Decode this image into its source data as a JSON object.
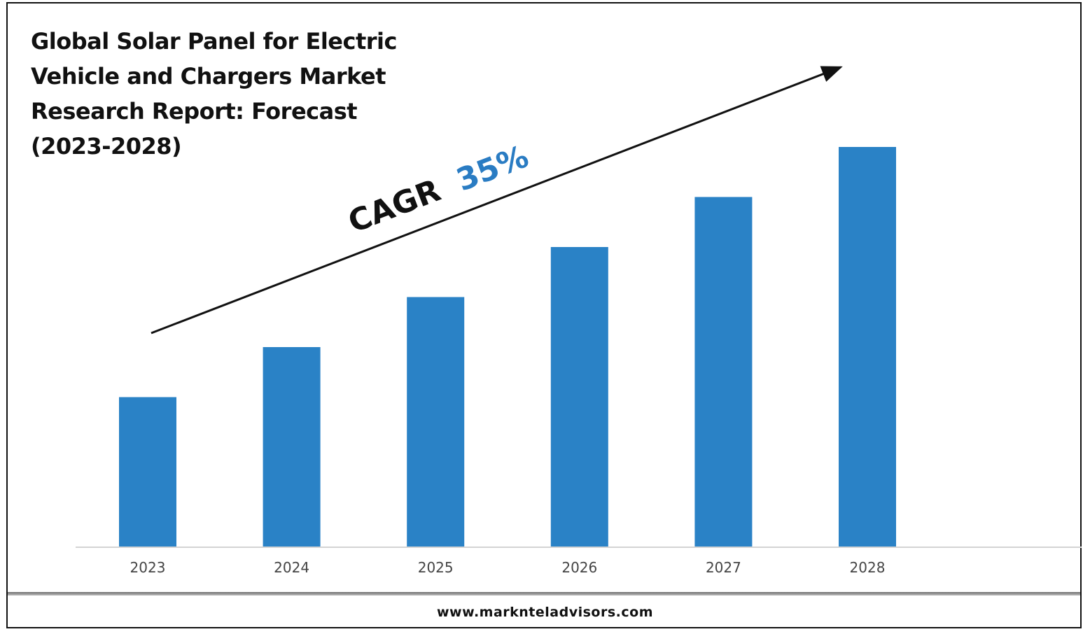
{
  "title": "Global Solar Panel for Electric\nVehicle and Chargers Market\nResearch Report: Forecast\n(2023-2028)",
  "annotation": {
    "prefix": "CAGR",
    "value": "35%",
    "value_color": "#2a7cc3",
    "prefix_color": "#111111"
  },
  "footer": {
    "url": "www.marknteladvisors.com"
  },
  "chart_data": {
    "type": "bar",
    "categories": [
      "2023",
      "2024",
      "2025",
      "2026",
      "2027",
      "2028"
    ],
    "values": [
      30,
      40,
      50,
      60,
      70,
      80
    ],
    "ylim": [
      0,
      100
    ],
    "bar_color": "#2a82c6",
    "grid": false,
    "legend": "none",
    "xlabel": "",
    "ylabel": ""
  }
}
